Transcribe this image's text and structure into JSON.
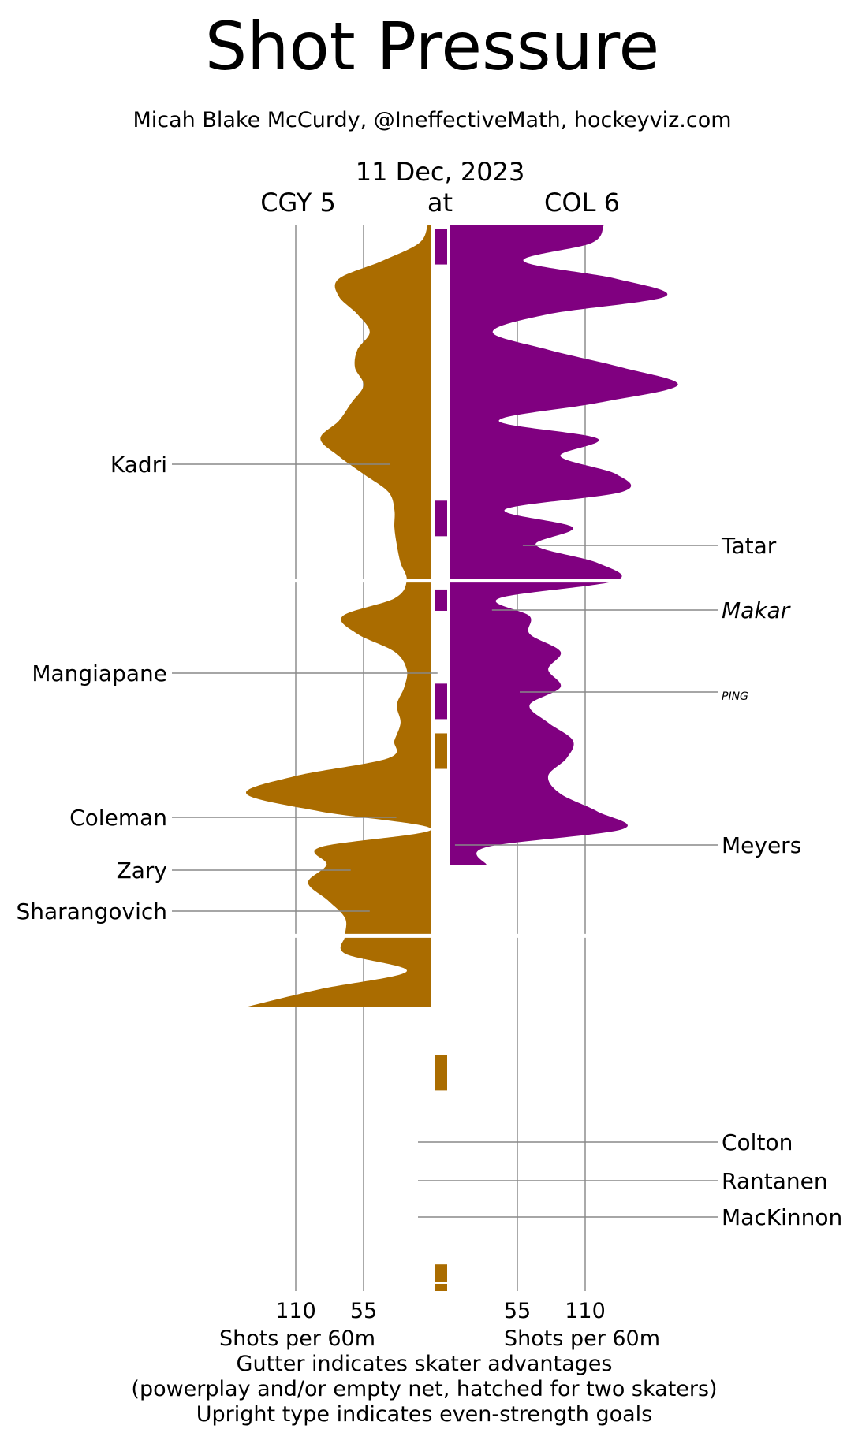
{
  "title": "Shot Pressure",
  "subtitle": "Micah Blake McCurdy, @IneffectiveMath, hockeyviz.com",
  "date": "11 Dec, 2023",
  "away_label": "CGY 5",
  "at_label": "at",
  "home_label": "COL 6",
  "footnotes": [
    "Gutter indicates skater advantages",
    "(powerplay and/or empty net, hatched for two skaters)",
    "Upright type indicates even-strength goals"
  ],
  "colors": {
    "away": "#aa6c00",
    "home": "#800080",
    "grid": "#aaaaaa"
  },
  "chart_data": {
    "type": "area",
    "orientation": "vertical mirrored",
    "value_axis_label": "Shots per 60m",
    "value_ticks": [
      55,
      110
    ],
    "value_range": [
      0,
      150
    ],
    "game_minutes": [
      0,
      60
    ],
    "periods": 3,
    "series": [
      {
        "name": "CGY 5",
        "side": "left",
        "points": [
          [
            0,
            3
          ],
          [
            1,
            10
          ],
          [
            2,
            40
          ],
          [
            3,
            75
          ],
          [
            4,
            75
          ],
          [
            5,
            60
          ],
          [
            6,
            50
          ],
          [
            7,
            60
          ],
          [
            8,
            62
          ],
          [
            9,
            55
          ],
          [
            10,
            65
          ],
          [
            11,
            75
          ],
          [
            12,
            90
          ],
          [
            13,
            75
          ],
          [
            14,
            55
          ],
          [
            15,
            35
          ],
          [
            16,
            30
          ],
          [
            17,
            30
          ],
          [
            18,
            28
          ],
          [
            19,
            25
          ],
          [
            20,
            20
          ],
          [
            21,
            30
          ],
          [
            22,
            72
          ],
          [
            23,
            60
          ],
          [
            24,
            30
          ],
          [
            25,
            20
          ],
          [
            26,
            22
          ],
          [
            27,
            28
          ],
          [
            28,
            25
          ],
          [
            29,
            30
          ],
          [
            30,
            35
          ],
          [
            31,
            110
          ],
          [
            32,
            150
          ],
          [
            33,
            90
          ],
          [
            34,
            0
          ],
          [
            35,
            90
          ],
          [
            36,
            85
          ],
          [
            37,
            100
          ],
          [
            38,
            84
          ],
          [
            39,
            70
          ],
          [
            40,
            70
          ],
          [
            41,
            70
          ],
          [
            42,
            20
          ],
          [
            43,
            90
          ],
          [
            44,
            150
          ]
        ]
      },
      {
        "name": "COL 6",
        "side": "right",
        "points": [
          [
            0,
            125
          ],
          [
            1,
            115
          ],
          [
            2,
            60
          ],
          [
            3,
            135
          ],
          [
            4,
            175
          ],
          [
            5,
            80
          ],
          [
            6,
            35
          ],
          [
            7,
            80
          ],
          [
            8,
            140
          ],
          [
            9,
            185
          ],
          [
            10,
            120
          ],
          [
            11,
            40
          ],
          [
            12,
            120
          ],
          [
            13,
            90
          ],
          [
            14,
            135
          ],
          [
            15,
            140
          ],
          [
            16,
            45
          ],
          [
            17,
            100
          ],
          [
            18,
            70
          ],
          [
            19,
            120
          ],
          [
            20,
            135
          ],
          [
            21,
            40
          ],
          [
            22,
            65
          ],
          [
            23,
            65
          ],
          [
            24,
            90
          ],
          [
            25,
            80
          ],
          [
            26,
            90
          ],
          [
            27,
            65
          ],
          [
            28,
            80
          ],
          [
            29,
            100
          ],
          [
            30,
            95
          ],
          [
            31,
            80
          ],
          [
            32,
            90
          ],
          [
            33,
            120
          ],
          [
            34,
            140
          ],
          [
            35,
            30
          ],
          [
            36,
            30
          ]
        ]
      }
    ],
    "skater_advantage": [
      {
        "team": "COL 6",
        "period": 1,
        "from": 0.2,
        "to": 2.2
      },
      {
        "team": "COL 6",
        "period": 1,
        "from": 15.5,
        "to": 17.5
      },
      {
        "team": "COL 6",
        "period": 2,
        "from": 0.5,
        "to": 1.7
      },
      {
        "team": "COL 6",
        "period": 2,
        "from": 5.8,
        "to": 7.8
      },
      {
        "team": "CGY 5",
        "period": 2,
        "from": 8.6,
        "to": 10.6
      },
      {
        "team": "CGY 5",
        "period": 3,
        "from": 6.7,
        "to": 8.7
      },
      {
        "team": "CGY 5",
        "period": 3,
        "from": 18.5,
        "to": 19.5
      },
      {
        "team": "CGY 5",
        "period": 3,
        "from": 19.6,
        "to": 20
      }
    ],
    "goals": [
      {
        "team": "CGY 5",
        "player": "Kadri",
        "minute": 13.8,
        "even_strength": true
      },
      {
        "team": "COL 6",
        "player": "Tatar",
        "minute": 18.3,
        "even_strength": true
      },
      {
        "team": "COL 6",
        "player": "Makar",
        "minute": 21.8,
        "even_strength": false
      },
      {
        "team": "CGY 5",
        "player": "Mangiapane",
        "minute": 25.3,
        "even_strength": true
      },
      {
        "team": "COL 6",
        "player": "PING",
        "minute": 26.3,
        "even_strength": false
      },
      {
        "team": "CGY 5",
        "player": "Coleman",
        "minute": 33.4,
        "even_strength": true
      },
      {
        "team": "COL 6",
        "player": "Meyers",
        "minute": 35.0,
        "even_strength": true
      },
      {
        "team": "CGY 5",
        "player": "Zary",
        "minute": 36.4,
        "even_strength": true
      },
      {
        "team": "CGY 5",
        "player": "Sharangovich",
        "minute": 38.6,
        "even_strength": true
      },
      {
        "team": "COL 6",
        "player": "Colton",
        "minute": 50.8,
        "even_strength": true
      },
      {
        "team": "COL 6",
        "player": "Rantanen",
        "minute": 53.0,
        "even_strength": true
      },
      {
        "team": "COL 6",
        "player": "MacKinnon",
        "minute": 55.0,
        "even_strength": true
      }
    ]
  }
}
